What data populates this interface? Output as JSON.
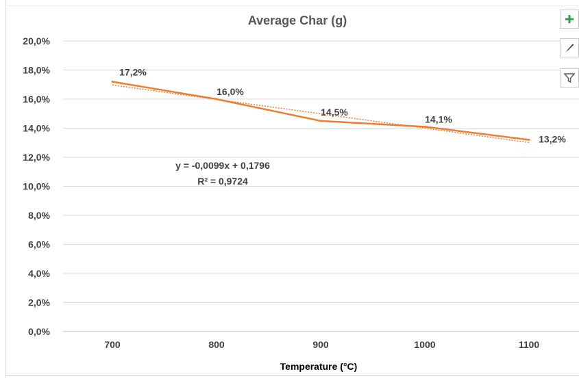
{
  "chart_data": {
    "type": "line",
    "title": "Average Char (g)",
    "xlabel": "Temperature (°C)",
    "ylabel": "",
    "categories": [
      "700",
      "800",
      "900",
      "1000",
      "1100"
    ],
    "series": [
      {
        "values": [
          0.172,
          0.16,
          0.145,
          0.141,
          0.132
        ],
        "color": "#ED7D31"
      }
    ],
    "data_labels": [
      "17,2%",
      "16,0%",
      "14,5%",
      "14,1%",
      "13,2%"
    ],
    "ylim": [
      0,
      0.2
    ],
    "yticks": [
      0.0,
      0.02,
      0.04,
      0.06,
      0.08,
      0.1,
      0.12,
      0.14,
      0.16,
      0.18,
      0.2
    ],
    "ytick_labels": [
      "0,0%",
      "2,0%",
      "4,0%",
      "6,0%",
      "8,0%",
      "10,0%",
      "12,0%",
      "14,0%",
      "16,0%",
      "18,0%",
      "20,0%"
    ],
    "grid": true,
    "trendline": {
      "type": "linear",
      "slope": -0.0099,
      "intercept": 0.1796,
      "color": "#ED7D31",
      "style": "dotted",
      "equation": "y = -0,0099x + 0,1796",
      "r_squared": "R² = 0,9724"
    }
  },
  "toolbar": {
    "icons": [
      "chart-elements-icon",
      "chart-styles-icon",
      "chart-filters-icon"
    ],
    "plus_color": "#2E9E4F"
  }
}
